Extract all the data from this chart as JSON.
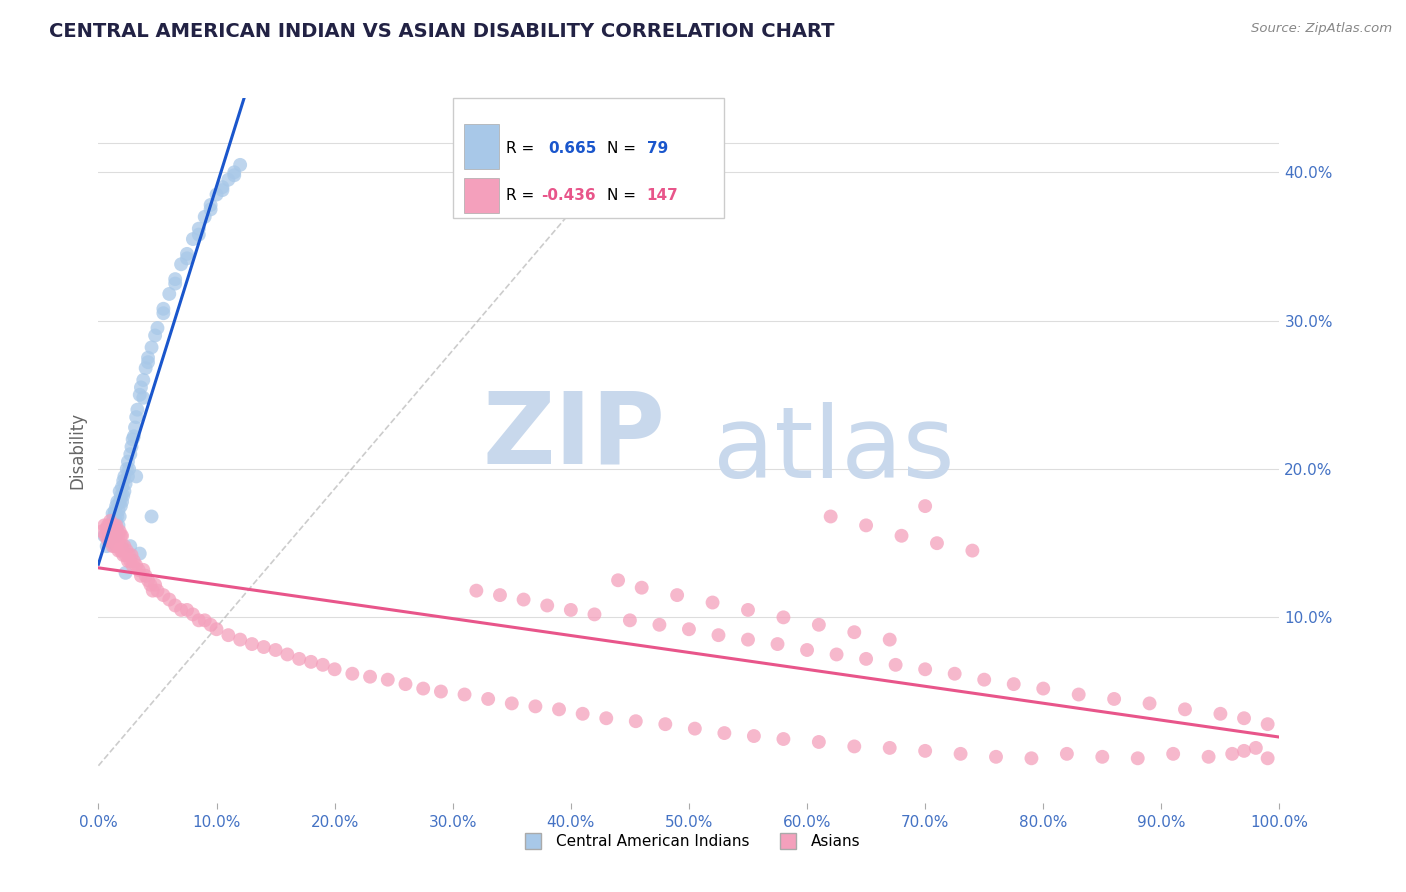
{
  "title": "CENTRAL AMERICAN INDIAN VS ASIAN DISABILITY CORRELATION CHART",
  "source": "Source: ZipAtlas.com",
  "ylabel": "Disability",
  "y_tick_vals": [
    0.1,
    0.2,
    0.3,
    0.4
  ],
  "blue_color": "#A8C8E8",
  "pink_color": "#F4A0BC",
  "line_blue": "#1A56CC",
  "line_pink": "#E8558A",
  "axis_label_color": "#4472C4",
  "grid_color": "#DDDDDD",
  "title_color": "#222244",
  "watermark_zip": "ZIP",
  "watermark_atlas": "atlas",
  "blue_x": [
    0.005,
    0.007,
    0.008,
    0.009,
    0.01,
    0.01,
    0.011,
    0.012,
    0.012,
    0.013,
    0.013,
    0.014,
    0.014,
    0.015,
    0.015,
    0.015,
    0.016,
    0.016,
    0.017,
    0.017,
    0.018,
    0.018,
    0.018,
    0.019,
    0.019,
    0.02,
    0.02,
    0.021,
    0.021,
    0.022,
    0.022,
    0.023,
    0.024,
    0.025,
    0.025,
    0.026,
    0.027,
    0.028,
    0.029,
    0.03,
    0.031,
    0.032,
    0.033,
    0.035,
    0.036,
    0.038,
    0.04,
    0.042,
    0.045,
    0.048,
    0.05,
    0.055,
    0.06,
    0.065,
    0.07,
    0.075,
    0.08,
    0.085,
    0.09,
    0.095,
    0.1,
    0.105,
    0.11,
    0.115,
    0.12,
    0.023,
    0.027,
    0.032,
    0.038,
    0.042,
    0.055,
    0.065,
    0.075,
    0.085,
    0.095,
    0.105,
    0.115,
    0.035,
    0.045
  ],
  "blue_y": [
    0.155,
    0.148,
    0.16,
    0.152,
    0.158,
    0.162,
    0.155,
    0.165,
    0.17,
    0.158,
    0.168,
    0.16,
    0.172,
    0.155,
    0.165,
    0.175,
    0.168,
    0.178,
    0.162,
    0.172,
    0.168,
    0.178,
    0.185,
    0.175,
    0.182,
    0.178,
    0.188,
    0.182,
    0.192,
    0.185,
    0.195,
    0.19,
    0.2,
    0.195,
    0.205,
    0.2,
    0.21,
    0.215,
    0.22,
    0.222,
    0.228,
    0.235,
    0.24,
    0.25,
    0.255,
    0.26,
    0.268,
    0.275,
    0.282,
    0.29,
    0.295,
    0.308,
    0.318,
    0.328,
    0.338,
    0.345,
    0.355,
    0.362,
    0.37,
    0.378,
    0.385,
    0.39,
    0.395,
    0.4,
    0.405,
    0.13,
    0.148,
    0.195,
    0.248,
    0.272,
    0.305,
    0.325,
    0.342,
    0.358,
    0.375,
    0.388,
    0.398,
    0.143,
    0.168
  ],
  "pink_x": [
    0.003,
    0.005,
    0.006,
    0.007,
    0.008,
    0.008,
    0.009,
    0.01,
    0.01,
    0.011,
    0.011,
    0.012,
    0.012,
    0.013,
    0.013,
    0.014,
    0.014,
    0.015,
    0.015,
    0.016,
    0.016,
    0.017,
    0.017,
    0.018,
    0.018,
    0.019,
    0.019,
    0.02,
    0.02,
    0.021,
    0.022,
    0.023,
    0.024,
    0.025,
    0.026,
    0.027,
    0.028,
    0.029,
    0.03,
    0.032,
    0.034,
    0.036,
    0.038,
    0.04,
    0.042,
    0.044,
    0.046,
    0.048,
    0.05,
    0.055,
    0.06,
    0.065,
    0.07,
    0.075,
    0.08,
    0.085,
    0.09,
    0.095,
    0.1,
    0.11,
    0.12,
    0.13,
    0.14,
    0.15,
    0.16,
    0.17,
    0.18,
    0.19,
    0.2,
    0.215,
    0.23,
    0.245,
    0.26,
    0.275,
    0.29,
    0.31,
    0.33,
    0.35,
    0.37,
    0.39,
    0.41,
    0.43,
    0.455,
    0.48,
    0.505,
    0.53,
    0.555,
    0.58,
    0.61,
    0.64,
    0.67,
    0.7,
    0.73,
    0.76,
    0.79,
    0.82,
    0.85,
    0.88,
    0.91,
    0.94,
    0.96,
    0.97,
    0.98,
    0.99,
    0.44,
    0.46,
    0.49,
    0.52,
    0.55,
    0.58,
    0.61,
    0.64,
    0.67,
    0.7,
    0.62,
    0.65,
    0.68,
    0.71,
    0.74,
    0.32,
    0.34,
    0.36,
    0.38,
    0.4,
    0.42,
    0.45,
    0.475,
    0.5,
    0.525,
    0.55,
    0.575,
    0.6,
    0.625,
    0.65,
    0.675,
    0.7,
    0.725,
    0.75,
    0.775,
    0.8,
    0.83,
    0.86,
    0.89,
    0.92,
    0.95,
    0.97,
    0.99
  ],
  "pink_y": [
    0.158,
    0.162,
    0.155,
    0.16,
    0.152,
    0.162,
    0.155,
    0.158,
    0.165,
    0.152,
    0.162,
    0.148,
    0.158,
    0.15,
    0.162,
    0.148,
    0.158,
    0.152,
    0.162,
    0.148,
    0.158,
    0.145,
    0.155,
    0.148,
    0.158,
    0.145,
    0.155,
    0.148,
    0.155,
    0.142,
    0.148,
    0.142,
    0.145,
    0.138,
    0.142,
    0.138,
    0.142,
    0.135,
    0.138,
    0.135,
    0.132,
    0.128,
    0.132,
    0.128,
    0.125,
    0.122,
    0.118,
    0.122,
    0.118,
    0.115,
    0.112,
    0.108,
    0.105,
    0.105,
    0.102,
    0.098,
    0.098,
    0.095,
    0.092,
    0.088,
    0.085,
    0.082,
    0.08,
    0.078,
    0.075,
    0.072,
    0.07,
    0.068,
    0.065,
    0.062,
    0.06,
    0.058,
    0.055,
    0.052,
    0.05,
    0.048,
    0.045,
    0.042,
    0.04,
    0.038,
    0.035,
    0.032,
    0.03,
    0.028,
    0.025,
    0.022,
    0.02,
    0.018,
    0.016,
    0.013,
    0.012,
    0.01,
    0.008,
    0.006,
    0.005,
    0.008,
    0.006,
    0.005,
    0.008,
    0.006,
    0.008,
    0.01,
    0.012,
    0.005,
    0.125,
    0.12,
    0.115,
    0.11,
    0.105,
    0.1,
    0.095,
    0.09,
    0.085,
    0.175,
    0.168,
    0.162,
    0.155,
    0.15,
    0.145,
    0.118,
    0.115,
    0.112,
    0.108,
    0.105,
    0.102,
    0.098,
    0.095,
    0.092,
    0.088,
    0.085,
    0.082,
    0.078,
    0.075,
    0.072,
    0.068,
    0.065,
    0.062,
    0.058,
    0.055,
    0.052,
    0.048,
    0.045,
    0.042,
    0.038,
    0.035,
    0.032,
    0.028
  ]
}
